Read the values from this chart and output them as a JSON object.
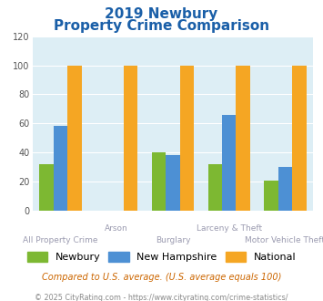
{
  "title_line1": "2019 Newbury",
  "title_line2": "Property Crime Comparison",
  "categories_row1": [
    "All Property Crime",
    "Arson",
    "Burglary",
    "Larceny & Theft",
    "Motor Vehicle Theft"
  ],
  "categories_top": [
    "",
    "Arson",
    "",
    "Larceny & Theft",
    ""
  ],
  "categories_bot": [
    "All Property Crime",
    "",
    "Burglary",
    "",
    "Motor Vehicle Theft"
  ],
  "newbury": [
    32,
    0,
    40,
    32,
    21
  ],
  "new_hampshire": [
    58,
    0,
    38,
    66,
    30
  ],
  "national": [
    100,
    100,
    100,
    100,
    100
  ],
  "color_newbury": "#7db832",
  "color_nh": "#4d90d4",
  "color_national": "#f5a623",
  "ylim": [
    0,
    120
  ],
  "yticks": [
    0,
    20,
    40,
    60,
    80,
    100,
    120
  ],
  "plot_bg": "#ddeef5",
  "title_color": "#1a5fa8",
  "xlabel_color_top": "#9b9bb0",
  "xlabel_color_bot": "#9b9bb0",
  "footer_text": "Compared to U.S. average. (U.S. average equals 100)",
  "footer2_text": "© 2025 CityRating.com - https://www.cityrating.com/crime-statistics/",
  "footer_color": "#cc6600",
  "footer2_color": "#888888",
  "legend_labels": [
    "Newbury",
    "New Hampshire",
    "National"
  ],
  "bar_width": 0.25
}
